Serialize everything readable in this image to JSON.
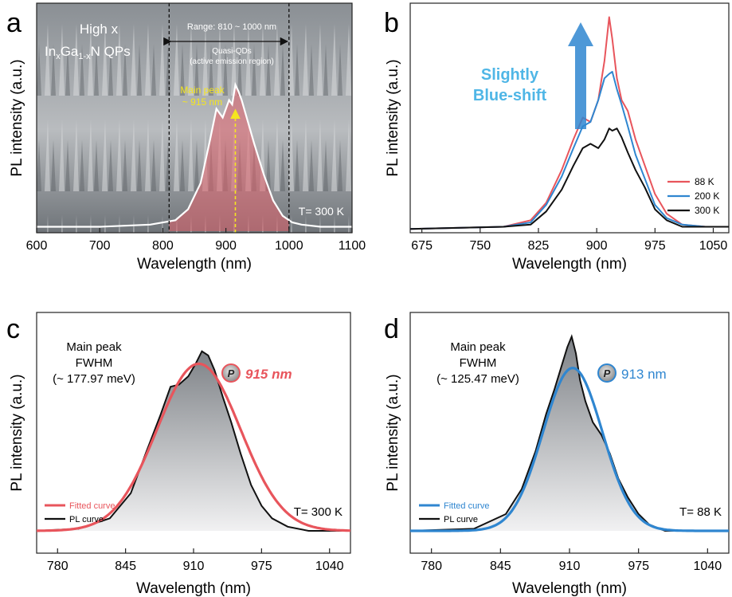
{
  "figure": {
    "panels": [
      {
        "letter": "a",
        "ylabel": "PL intensity (a.u.)",
        "xlabel": "Wavelength (nm)",
        "xticks": [
          600,
          700,
          800,
          900,
          1000,
          1100
        ],
        "title_line1": "High x",
        "title_line2_main": "In",
        "title_line2_s1": "x",
        "title_line2_mid": "Ga",
        "title_line2_s2": "1-x",
        "title_line2_end": "N QPs",
        "range_label": "Range: 810 ~ 1000 nm",
        "region_line1": "Quasi-QDs",
        "region_line2": "(active emission region)",
        "peak_line1": "Main peak",
        "peak_line2": "~ 915 nm",
        "temp_label": "T= 300 K"
      },
      {
        "letter": "b",
        "ylabel": "PL intensity (a.u.)",
        "xlabel": "Wavelength (nm)",
        "xticks": [
          675,
          750,
          825,
          900,
          975,
          1050
        ],
        "shift_line1": "Slightly",
        "shift_line2": "Blue-shift",
        "legend": [
          "88 K",
          "200 K",
          "300 K"
        ]
      },
      {
        "letter": "c",
        "ylabel": "PL intensity (a.u.)",
        "xlabel": "Wavelength (nm)",
        "xticks": [
          780,
          845,
          910,
          975,
          1040
        ],
        "note_line1": "Main peak",
        "note_line2": "FWHM",
        "note_line3": "(~ 177.97 meV)",
        "badge_letter": "P",
        "peak_label": "915 nm",
        "legend": [
          "Fitted curve",
          "PL curve"
        ],
        "temp_label": "T= 300 K"
      },
      {
        "letter": "d",
        "ylabel": "PL intensity (a.u.)",
        "xlabel": "Wavelength (nm)",
        "xticks": [
          780,
          845,
          910,
          975,
          1040
        ],
        "note_line1": "Main peak",
        "note_line2": "FWHM",
        "note_line3": "(~ 125.47 meV)",
        "badge_letter": "P",
        "peak_label": "913 nm",
        "legend": [
          "Fitted curve",
          "PL curve"
        ],
        "temp_label": "T= 88 K"
      }
    ]
  },
  "colors": {
    "red": "#e8555c",
    "blue": "#2f86d0",
    "light_blue": "#4fb6e6",
    "black": "#111111",
    "yellow": "#f5e61f"
  },
  "chart_data": [
    {
      "panel": "a",
      "type": "area",
      "xlim": [
        600,
        1100
      ],
      "ylim": [
        0,
        1
      ],
      "markers": [
        810,
        1000
      ],
      "peak_marker": 915,
      "series": [
        {
          "x": [
            600,
            700,
            780,
            820,
            840,
            860,
            875,
            885,
            895,
            905,
            910,
            915,
            920,
            925,
            935,
            945,
            960,
            975,
            990,
            1005,
            1020,
            1050,
            1100
          ],
          "values": [
            0.02,
            0.02,
            0.03,
            0.05,
            0.1,
            0.22,
            0.42,
            0.56,
            0.52,
            0.6,
            0.58,
            0.67,
            0.64,
            0.6,
            0.5,
            0.4,
            0.26,
            0.14,
            0.07,
            0.04,
            0.03,
            0.02,
            0.02
          ]
        }
      ]
    },
    {
      "panel": "b",
      "type": "line",
      "xlim": [
        660,
        1070
      ],
      "ylim": [
        0,
        1
      ],
      "series": [
        {
          "name": "88 K",
          "x": [
            660,
            780,
            815,
            835,
            855,
            870,
            882,
            892,
            902,
            910,
            916,
            920,
            926,
            932,
            940,
            950,
            962,
            975,
            990,
            1010,
            1040,
            1070
          ],
          "values": [
            0.01,
            0.02,
            0.05,
            0.13,
            0.28,
            0.42,
            0.52,
            0.5,
            0.6,
            0.78,
            0.98,
            0.88,
            0.7,
            0.6,
            0.55,
            0.42,
            0.3,
            0.17,
            0.08,
            0.03,
            0.02,
            0.02
          ]
        },
        {
          "name": "200 K",
          "x": [
            660,
            780,
            815,
            835,
            855,
            870,
            882,
            892,
            902,
            910,
            916,
            920,
            926,
            932,
            940,
            950,
            962,
            975,
            990,
            1010,
            1040,
            1070
          ],
          "values": [
            0.01,
            0.02,
            0.04,
            0.12,
            0.25,
            0.38,
            0.48,
            0.5,
            0.6,
            0.7,
            0.72,
            0.73,
            0.65,
            0.58,
            0.48,
            0.35,
            0.24,
            0.12,
            0.06,
            0.03,
            0.02,
            0.02
          ]
        },
        {
          "name": "300 K",
          "x": [
            660,
            780,
            815,
            835,
            855,
            870,
            882,
            892,
            902,
            910,
            916,
            920,
            926,
            932,
            940,
            950,
            962,
            975,
            990,
            1010,
            1040,
            1070
          ],
          "values": [
            0.01,
            0.02,
            0.03,
            0.09,
            0.19,
            0.3,
            0.38,
            0.4,
            0.38,
            0.42,
            0.47,
            0.46,
            0.47,
            0.43,
            0.36,
            0.28,
            0.2,
            0.1,
            0.05,
            0.02,
            0.02,
            0.02
          ]
        }
      ]
    },
    {
      "panel": "c",
      "type": "line",
      "xlim": [
        760,
        1060
      ],
      "ylim": [
        0,
        1
      ],
      "series": [
        {
          "name": "Fitted curve",
          "type": "gaussian",
          "center": 915,
          "amplitude": 0.8,
          "sigma": 40
        },
        {
          "name": "PL curve",
          "x": [
            760,
            800,
            830,
            850,
            865,
            878,
            888,
            896,
            905,
            912,
            918,
            924,
            930,
            938,
            946,
            955,
            965,
            975,
            985,
            1000,
            1020,
            1060
          ],
          "values": [
            0.0,
            0.01,
            0.06,
            0.18,
            0.38,
            0.55,
            0.69,
            0.7,
            0.74,
            0.8,
            0.86,
            0.84,
            0.77,
            0.64,
            0.52,
            0.37,
            0.22,
            0.12,
            0.06,
            0.02,
            0.0,
            0.0
          ]
        }
      ]
    },
    {
      "panel": "d",
      "type": "line",
      "xlim": [
        760,
        1060
      ],
      "ylim": [
        0,
        1
      ],
      "series": [
        {
          "name": "Fitted curve",
          "type": "gaussian",
          "center": 913,
          "amplitude": 0.78,
          "sigma": 28
        },
        {
          "name": "PL curve",
          "x": [
            760,
            820,
            850,
            865,
            878,
            888,
            896,
            902,
            908,
            912,
            916,
            920,
            925,
            932,
            940,
            948,
            956,
            965,
            975,
            985,
            1000,
            1060
          ],
          "values": [
            0.0,
            0.01,
            0.08,
            0.2,
            0.38,
            0.56,
            0.68,
            0.78,
            0.88,
            0.93,
            0.85,
            0.72,
            0.62,
            0.52,
            0.46,
            0.37,
            0.25,
            0.16,
            0.08,
            0.03,
            0.0,
            0.0
          ]
        }
      ]
    }
  ]
}
